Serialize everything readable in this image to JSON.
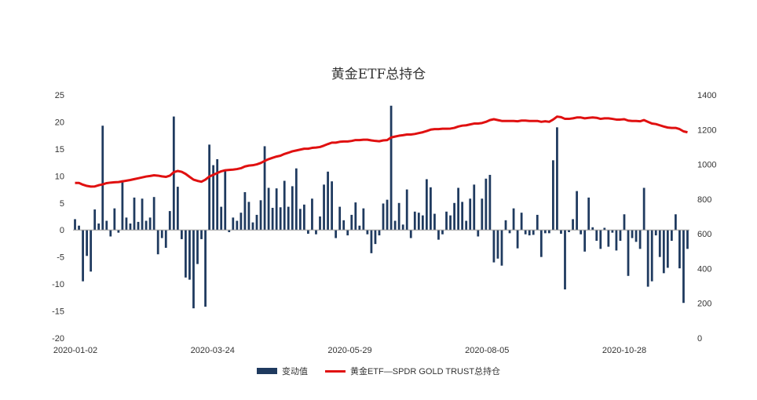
{
  "chart_data": {
    "type": "bar+line",
    "title": "黄金ETF总持仓",
    "x_tick_labels": [
      "2020-01-02",
      "2020-03-24",
      "2020-05-29",
      "2020-08-05",
      "2020-10-28"
    ],
    "y_left": {
      "min": -20,
      "max": 25,
      "ticks": [
        25,
        20,
        15,
        10,
        5,
        0,
        -5,
        -10,
        -15,
        -20
      ]
    },
    "y_right": {
      "min": 0,
      "max": 1400,
      "ticks": [
        1400,
        1200,
        1000,
        800,
        600,
        400,
        200,
        0
      ]
    },
    "legend_position": "bottom",
    "series": [
      {
        "name": "变动值",
        "type": "bar",
        "axis": "left",
        "color": "#1f3a5f",
        "values": [
          2.0,
          0.8,
          -9.5,
          -4.8,
          -7.7,
          3.8,
          1.2,
          19.3,
          1.7,
          -1.2,
          4.0,
          -0.5,
          9.2,
          2.3,
          1.2,
          6.0,
          1.5,
          5.8,
          1.7,
          2.3,
          6.1,
          -4.5,
          -1.5,
          -3.3,
          3.5,
          21.0,
          8.0,
          -1.7,
          -8.8,
          -9.2,
          -14.5,
          -6.3,
          -1.7,
          -14.2,
          15.8,
          12.0,
          13.1,
          4.3,
          11.0,
          -0.4,
          2.3,
          1.7,
          3.2,
          7.0,
          5.2,
          1.4,
          2.8,
          5.5,
          15.5,
          7.8,
          4.1,
          7.7,
          4.2,
          9.1,
          4.3,
          8.1,
          11.4,
          3.9,
          4.7,
          -0.7,
          5.8,
          -0.8,
          2.5,
          8.4,
          10.8,
          9.0,
          -1.5,
          4.3,
          1.8,
          -1.0,
          2.8,
          5.1,
          0.8,
          4.0,
          -0.8,
          -4.3,
          -2.6,
          -1.0,
          4.9,
          5.6,
          23.0,
          1.7,
          5.0,
          1.0,
          7.5,
          -1.5,
          3.4,
          3.2,
          2.7,
          9.4,
          7.9,
          3.0,
          -1.8,
          -0.8,
          3.4,
          2.7,
          5.0,
          7.8,
          5.2,
          1.7,
          5.8,
          8.4,
          -1.2,
          5.8,
          9.5,
          10.2,
          -6.0,
          -5.3,
          -6.6,
          1.8,
          -0.6,
          4.0,
          -3.4,
          3.2,
          -0.8,
          -1.0,
          -0.9,
          2.8,
          -5.0,
          -0.6,
          -0.6,
          12.9,
          19.0,
          -0.7,
          -11.0,
          -0.4,
          2.0,
          7.2,
          -0.8,
          -4.0,
          6.0,
          0.5,
          -2.0,
          -3.5,
          0.4,
          -3.1,
          -0.5,
          -3.8,
          -2.0,
          2.9,
          -8.5,
          -1.5,
          -2.2,
          -3.5,
          7.8,
          -10.5,
          -9.5,
          -1.0,
          -5.0,
          -8.0,
          -7.0,
          -2.0,
          2.9,
          -7.1,
          -13.5,
          -3.5
        ]
      },
      {
        "name": "黄金ETF—SPDR GOLD TRUST总持仓",
        "type": "line",
        "axis": "right",
        "color": "#e01010",
        "values": [
          893,
          893,
          883,
          876,
          872,
          873,
          880,
          885,
          892,
          895,
          897,
          898,
          902,
          906,
          910,
          915,
          920,
          925,
          930,
          933,
          937,
          935,
          931,
          928,
          935,
          955,
          962,
          957,
          945,
          928,
          912,
          905,
          900,
          912,
          930,
          940,
          950,
          960,
          966,
          968,
          970,
          973,
          978,
          988,
          993,
          995,
          1000,
          1008,
          1020,
          1030,
          1038,
          1045,
          1050,
          1060,
          1067,
          1075,
          1080,
          1085,
          1090,
          1090,
          1095,
          1097,
          1100,
          1108,
          1117,
          1125,
          1125,
          1130,
          1132,
          1132,
          1135,
          1140,
          1140,
          1142,
          1142,
          1138,
          1135,
          1133,
          1138,
          1140,
          1155,
          1160,
          1165,
          1168,
          1172,
          1172,
          1175,
          1180,
          1185,
          1192,
          1200,
          1203,
          1203,
          1205,
          1205,
          1206,
          1210,
          1218,
          1223,
          1225,
          1230,
          1235,
          1235,
          1238,
          1245,
          1255,
          1260,
          1255,
          1250,
          1250,
          1250,
          1250,
          1248,
          1252,
          1252,
          1250,
          1250,
          1250,
          1245,
          1248,
          1245,
          1258,
          1275,
          1272,
          1262,
          1262,
          1265,
          1270,
          1270,
          1265,
          1268,
          1270,
          1268,
          1262,
          1265,
          1265,
          1262,
          1258,
          1258,
          1260,
          1252,
          1250,
          1250,
          1248,
          1255,
          1245,
          1235,
          1232,
          1225,
          1218,
          1212,
          1210,
          1210,
          1203,
          1190,
          1185
        ]
      }
    ]
  }
}
